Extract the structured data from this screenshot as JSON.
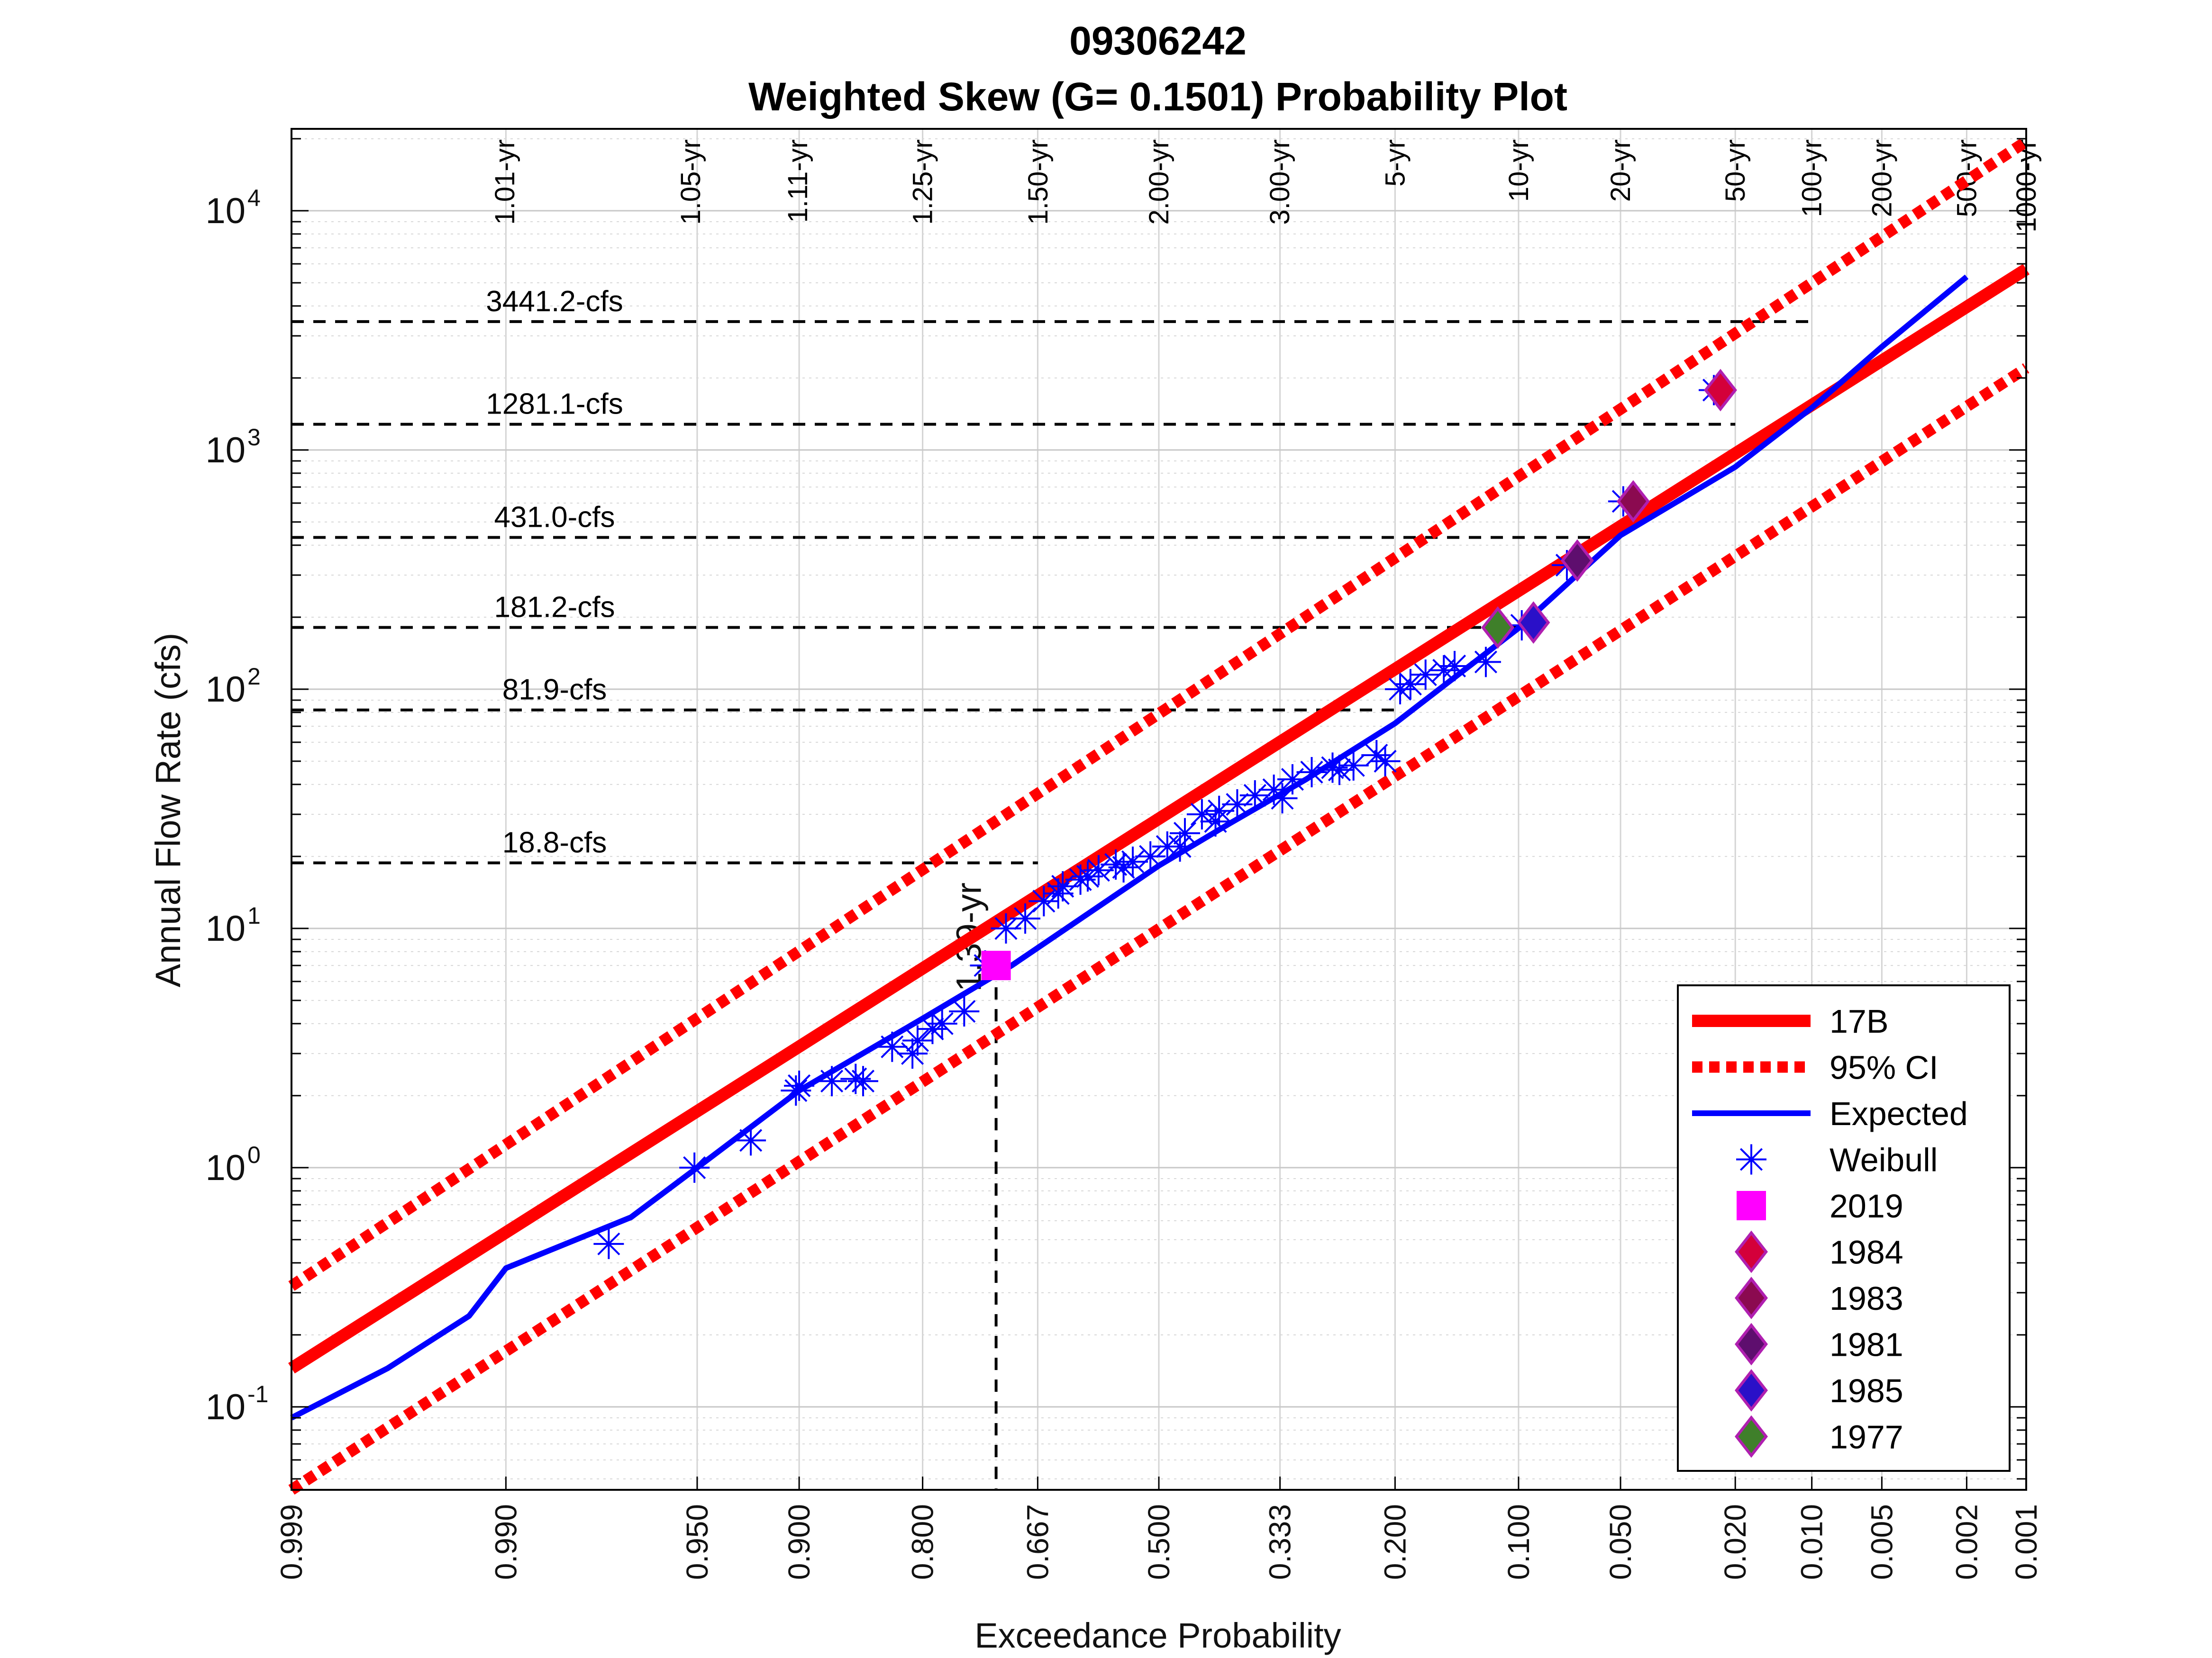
{
  "chart_data": {
    "type": "scatter",
    "title_line1": "09306242",
    "title_line2": "Weighted Skew (G= 0.1501) Probability Plot",
    "xlabel": "Exceedance Probability",
    "ylabel": "Annual Flow Rate (cfs)",
    "x_scale": "normal-probability (reversed)",
    "y_scale": "log",
    "xlim": [
      0.999,
      0.001
    ],
    "ylim": [
      0.045,
      22000
    ],
    "grid": true,
    "x_ticks": [
      "0.999",
      "0.990",
      "0.950",
      "0.900",
      "0.800",
      "0.667",
      "0.500",
      "0.333",
      "0.200",
      "0.100",
      "0.050",
      "0.020",
      "0.010",
      "0.005",
      "0.002",
      "0.001"
    ],
    "y_ticks": [
      {
        "value": 0.1,
        "base": "10",
        "exp": "-1"
      },
      {
        "value": 1,
        "base": "10",
        "exp": "0"
      },
      {
        "value": 10,
        "base": "10",
        "exp": "1"
      },
      {
        "value": 100,
        "base": "10",
        "exp": "2"
      },
      {
        "value": 1000,
        "base": "10",
        "exp": "3"
      },
      {
        "value": 10000,
        "base": "10",
        "exp": "4"
      }
    ],
    "return_periods": [
      {
        "label": "1.01-yr",
        "p": 0.9901
      },
      {
        "label": "1.05-yr",
        "p": 0.9524
      },
      {
        "label": "1.11-yr",
        "p": 0.9009
      },
      {
        "label": "1.25-yr",
        "p": 0.8
      },
      {
        "label": "1.50-yr",
        "p": 0.6667
      },
      {
        "label": "2.00-yr",
        "p": 0.5
      },
      {
        "label": "3.00-yr",
        "p": 0.3333
      },
      {
        "label": "5-yr",
        "p": 0.2
      },
      {
        "label": "10-yr",
        "p": 0.1
      },
      {
        "label": "20-yr",
        "p": 0.05
      },
      {
        "label": "50-yr",
        "p": 0.02
      },
      {
        "label": "100-yr",
        "p": 0.01
      },
      {
        "label": "200-yr",
        "p": 0.005
      },
      {
        "label": "500-yr",
        "p": 0.002
      },
      {
        "label": "1000-yr",
        "p": 0.001
      }
    ],
    "reference_lines": [
      {
        "label": "3441.2-cfs",
        "q": 3441.2,
        "p_end": 0.01
      },
      {
        "label": "1281.1-cfs",
        "q": 1281.1,
        "p_end": 0.02
      },
      {
        "label": "431.0-cfs",
        "q": 431.0,
        "p_end": 0.05
      },
      {
        "label": "181.2-cfs",
        "q": 181.2,
        "p_end": 0.1
      },
      {
        "label": "81.9-cfs",
        "q": 81.9,
        "p_end": 0.2
      },
      {
        "label": "18.8-cfs",
        "q": 18.8,
        "p_end": 0.6667
      }
    ],
    "marker_annotation": {
      "label": "1.39-yr",
      "p": 0.719,
      "q": 7.0
    },
    "series": [
      {
        "name": "17B",
        "kind": "line",
        "color": "#ff0000",
        "style": "solid",
        "x": [
          0.999,
          0.001
        ],
        "y": [
          0.145,
          5700
        ]
      },
      {
        "name": "95% CI",
        "kind": "line",
        "color": "#ff0000",
        "style": "dotted",
        "x": [
          0.999,
          0.001
        ],
        "y": [
          0.32,
          19500
        ]
      },
      {
        "name": "95% CI lower",
        "kind": "line",
        "color": "#ff0000",
        "style": "dotted",
        "legend": false,
        "x": [
          0.999,
          0.001
        ],
        "y": [
          0.045,
          2200
        ]
      },
      {
        "name": "Expected",
        "kind": "line",
        "color": "#0000ff",
        "style": "solid",
        "x": [
          0.999,
          0.997,
          0.993,
          0.99,
          0.97,
          0.95,
          0.9,
          0.8,
          0.7,
          0.6,
          0.5,
          0.4,
          0.3,
          0.2,
          0.1,
          0.05,
          0.02,
          0.01,
          0.005,
          0.002
        ],
        "y": [
          0.09,
          0.145,
          0.24,
          0.38,
          0.62,
          1.0,
          2.1,
          4.2,
          7.0,
          11.5,
          18.3,
          27.5,
          42,
          72,
          180,
          440,
          850,
          1500,
          2700,
          5300
        ]
      },
      {
        "name": "Weibull",
        "kind": "markers",
        "marker": "asterisk",
        "color": "#0000ff",
        "x": [
          0.975,
          0.951,
          0.927,
          0.902,
          0.878,
          0.854,
          0.829,
          0.805,
          0.78,
          0.756,
          0.732,
          0.707,
          0.683,
          0.659,
          0.634,
          0.61,
          0.585,
          0.561,
          0.537,
          0.512,
          0.488,
          0.463,
          0.439,
          0.415,
          0.39,
          0.366,
          0.341,
          0.317,
          0.293,
          0.268,
          0.244,
          0.219,
          0.195,
          0.171,
          0.146,
          0.122,
          0.098,
          0.073,
          0.049,
          0.024,
          0.9,
          0.86,
          0.81,
          0.79,
          0.64,
          0.6,
          0.55,
          0.47,
          0.42,
          0.33,
          0.26,
          0.21,
          0.185,
          0.155
        ],
        "y": [
          0.48,
          1.0,
          1.3,
          2.1,
          2.3,
          2.3,
          3.2,
          3.4,
          4.0,
          4.5,
          7.0,
          10.0,
          11.0,
          13.0,
          15.0,
          16.0,
          17.5,
          18.5,
          19.0,
          20.0,
          22.0,
          25.0,
          30.0,
          31.0,
          33.0,
          36.0,
          38.0,
          42.0,
          45.0,
          47.0,
          48.0,
          53.0,
          100.0,
          115.0,
          125.0,
          130.0,
          185.0,
          330.0,
          610.0,
          1780.0,
          2.2,
          2.35,
          3.0,
          3.8,
          14.0,
          16.5,
          18.0,
          22.0,
          28.0,
          35.0,
          46.0,
          50.0,
          105.0,
          120.0
        ]
      },
      {
        "name": "2019",
        "kind": "markers",
        "marker": "square",
        "color": "#ff00ff",
        "x": [
          0.719
        ],
        "y": [
          7.0
        ]
      },
      {
        "name": "1984",
        "kind": "markers",
        "marker": "diamond",
        "color": "#d4003a",
        "x": [
          0.0227
        ],
        "y": [
          1780
        ]
      },
      {
        "name": "1983",
        "kind": "markers",
        "marker": "diamond",
        "color": "#8b0a50",
        "x": [
          0.0455
        ],
        "y": [
          610
        ]
      },
      {
        "name": "1981",
        "kind": "markers",
        "marker": "diamond",
        "color": "#5e0e6e",
        "x": [
          0.068
        ],
        "y": [
          345
        ]
      },
      {
        "name": "1985",
        "kind": "markers",
        "marker": "diamond",
        "color": "#2a10c8",
        "x": [
          0.091
        ],
        "y": [
          190
        ]
      },
      {
        "name": "1977",
        "kind": "markers",
        "marker": "diamond",
        "color": "#3f7f2a",
        "x": [
          0.1136
        ],
        "y": [
          181
        ]
      }
    ],
    "legend": {
      "placement": "bottom-right",
      "entries": [
        "17B",
        "95% CI",
        "Expected",
        "Weibull",
        "2019",
        "1984",
        "1983",
        "1981",
        "1985",
        "1977"
      ]
    }
  }
}
